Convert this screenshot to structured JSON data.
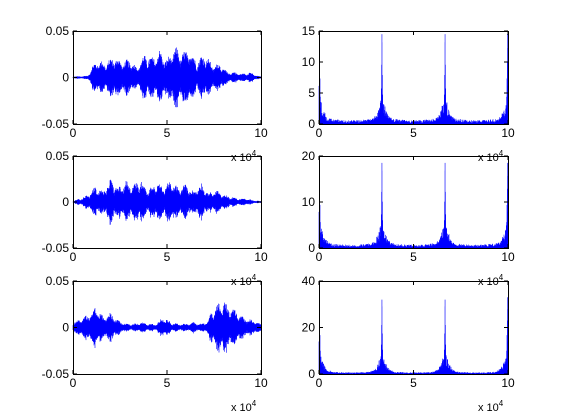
{
  "figure": {
    "background": "#ffffff",
    "trace_color": "#0000ff",
    "axis_color": "#000000"
  },
  "chart_data": [
    {
      "type": "line",
      "row": 1,
      "col": 1,
      "xlim": [
        0,
        100000
      ],
      "ylim": [
        -0.05,
        0.05
      ],
      "xticks": [
        0,
        50000,
        100000
      ],
      "xticklabels": [
        "0",
        "5",
        "10"
      ],
      "yticks": [
        -0.05,
        0,
        0.05
      ],
      "yticklabels": [
        "-0.05",
        "0",
        "0.05"
      ],
      "x_exponent_label": "x 10",
      "x_exponent_power": "4",
      "grid": false,
      "signal": "audio waveform",
      "envelope": {
        "x": [
          0,
          8000,
          10000,
          13000,
          17000,
          22000,
          26000,
          30000,
          34000,
          38000,
          42000,
          46000,
          50000,
          54000,
          58000,
          62000,
          66000,
          70000,
          74000,
          78000,
          82000,
          86000,
          90000,
          94000,
          98000,
          100000
        ],
        "y": [
          0.001,
          0.002,
          0.012,
          0.02,
          0.016,
          0.024,
          0.018,
          0.02,
          0.012,
          0.026,
          0.022,
          0.03,
          0.02,
          0.034,
          0.028,
          0.032,
          0.018,
          0.028,
          0.014,
          0.016,
          0.006,
          0.006,
          0.004,
          0.006,
          0.002,
          0.001
        ]
      }
    },
    {
      "type": "line",
      "row": 1,
      "col": 2,
      "xlim": [
        0,
        100000
      ],
      "ylim": [
        0,
        15
      ],
      "xticks": [
        0,
        50000,
        100000
      ],
      "xticklabels": [
        "0",
        "5",
        "10"
      ],
      "yticks": [
        0,
        5,
        10,
        15
      ],
      "yticklabels": [
        "0",
        "5",
        "10",
        "15"
      ],
      "x_exponent_label": "x 10",
      "x_exponent_power": "4",
      "grid": false,
      "signal": "magnitude spectrum",
      "peaks": [
        {
          "x": 300,
          "y": 14.5
        },
        {
          "x": 33300,
          "y": 14.5
        },
        {
          "x": 66700,
          "y": 14.5
        },
        {
          "x": 99700,
          "y": 14.5
        }
      ],
      "floor": 1.0
    },
    {
      "type": "line",
      "row": 2,
      "col": 1,
      "xlim": [
        0,
        100000
      ],
      "ylim": [
        -0.05,
        0.05
      ],
      "xticks": [
        0,
        50000,
        100000
      ],
      "xticklabels": [
        "0",
        "5",
        "10"
      ],
      "yticks": [
        -0.05,
        0,
        0.05
      ],
      "yticklabels": [
        "-0.05",
        "0",
        "0.05"
      ],
      "x_exponent_label": "x 10",
      "x_exponent_power": "4",
      "grid": false,
      "signal": "audio waveform",
      "envelope": {
        "x": [
          0,
          6000,
          9000,
          12000,
          16000,
          20000,
          24000,
          28000,
          32000,
          36000,
          40000,
          44000,
          48000,
          52000,
          56000,
          60000,
          64000,
          68000,
          72000,
          76000,
          80000,
          84000,
          88000,
          92000,
          96000,
          100000
        ],
        "y": [
          0.001,
          0.006,
          0.01,
          0.018,
          0.012,
          0.026,
          0.016,
          0.024,
          0.02,
          0.026,
          0.014,
          0.022,
          0.018,
          0.024,
          0.016,
          0.02,
          0.012,
          0.022,
          0.01,
          0.014,
          0.008,
          0.006,
          0.004,
          0.004,
          0.002,
          0.001
        ]
      }
    },
    {
      "type": "line",
      "row": 2,
      "col": 2,
      "xlim": [
        0,
        100000
      ],
      "ylim": [
        0,
        20
      ],
      "xticks": [
        0,
        50000,
        100000
      ],
      "xticklabels": [
        "0",
        "5",
        "10"
      ],
      "yticks": [
        0,
        10,
        20
      ],
      "yticklabels": [
        "0",
        "10",
        "20"
      ],
      "x_exponent_label": "x 10",
      "x_exponent_power": "4",
      "grid": false,
      "signal": "magnitude spectrum",
      "peaks": [
        {
          "x": 300,
          "y": 18.5
        },
        {
          "x": 33300,
          "y": 18.5
        },
        {
          "x": 66700,
          "y": 18.5
        },
        {
          "x": 99700,
          "y": 18.5
        }
      ],
      "floor": 1.2
    },
    {
      "type": "line",
      "row": 3,
      "col": 1,
      "xlim": [
        0,
        100000
      ],
      "ylim": [
        -0.05,
        0.05
      ],
      "xticks": [
        0,
        50000,
        100000
      ],
      "xticklabels": [
        "0",
        "5",
        "10"
      ],
      "yticks": [
        -0.05,
        0,
        0.05
      ],
      "yticklabels": [
        "-0.05",
        "0",
        "0.05"
      ],
      "x_exponent_label": "x 10",
      "x_exponent_power": "4",
      "grid": false,
      "signal": "audio waveform",
      "envelope": {
        "x": [
          0,
          4000,
          8000,
          12000,
          16000,
          20000,
          24000,
          28000,
          32000,
          36000,
          40000,
          44000,
          48000,
          52000,
          56000,
          60000,
          64000,
          68000,
          72000,
          74000,
          76000,
          80000,
          84000,
          88000,
          92000,
          96000,
          100000
        ],
        "y": [
          0.006,
          0.01,
          0.014,
          0.024,
          0.012,
          0.016,
          0.008,
          0.004,
          0.004,
          0.006,
          0.004,
          0.004,
          0.012,
          0.006,
          0.004,
          0.004,
          0.006,
          0.004,
          0.008,
          0.02,
          0.026,
          0.03,
          0.022,
          0.016,
          0.01,
          0.008,
          0.004
        ]
      }
    },
    {
      "type": "line",
      "row": 3,
      "col": 2,
      "xlim": [
        0,
        100000
      ],
      "ylim": [
        0,
        40
      ],
      "xticks": [
        0,
        50000,
        100000
      ],
      "xticklabels": [
        "0",
        "5",
        "10"
      ],
      "yticks": [
        0,
        20,
        40
      ],
      "yticklabels": [
        "0",
        "20",
        "40"
      ],
      "x_exponent_label": "x 10",
      "x_exponent_power": "4",
      "grid": false,
      "signal": "magnitude spectrum",
      "peaks": [
        {
          "x": 300,
          "y": 33
        },
        {
          "x": 33300,
          "y": 32
        },
        {
          "x": 66700,
          "y": 32
        },
        {
          "x": 99700,
          "y": 33
        }
      ],
      "floor": 1.2
    }
  ]
}
